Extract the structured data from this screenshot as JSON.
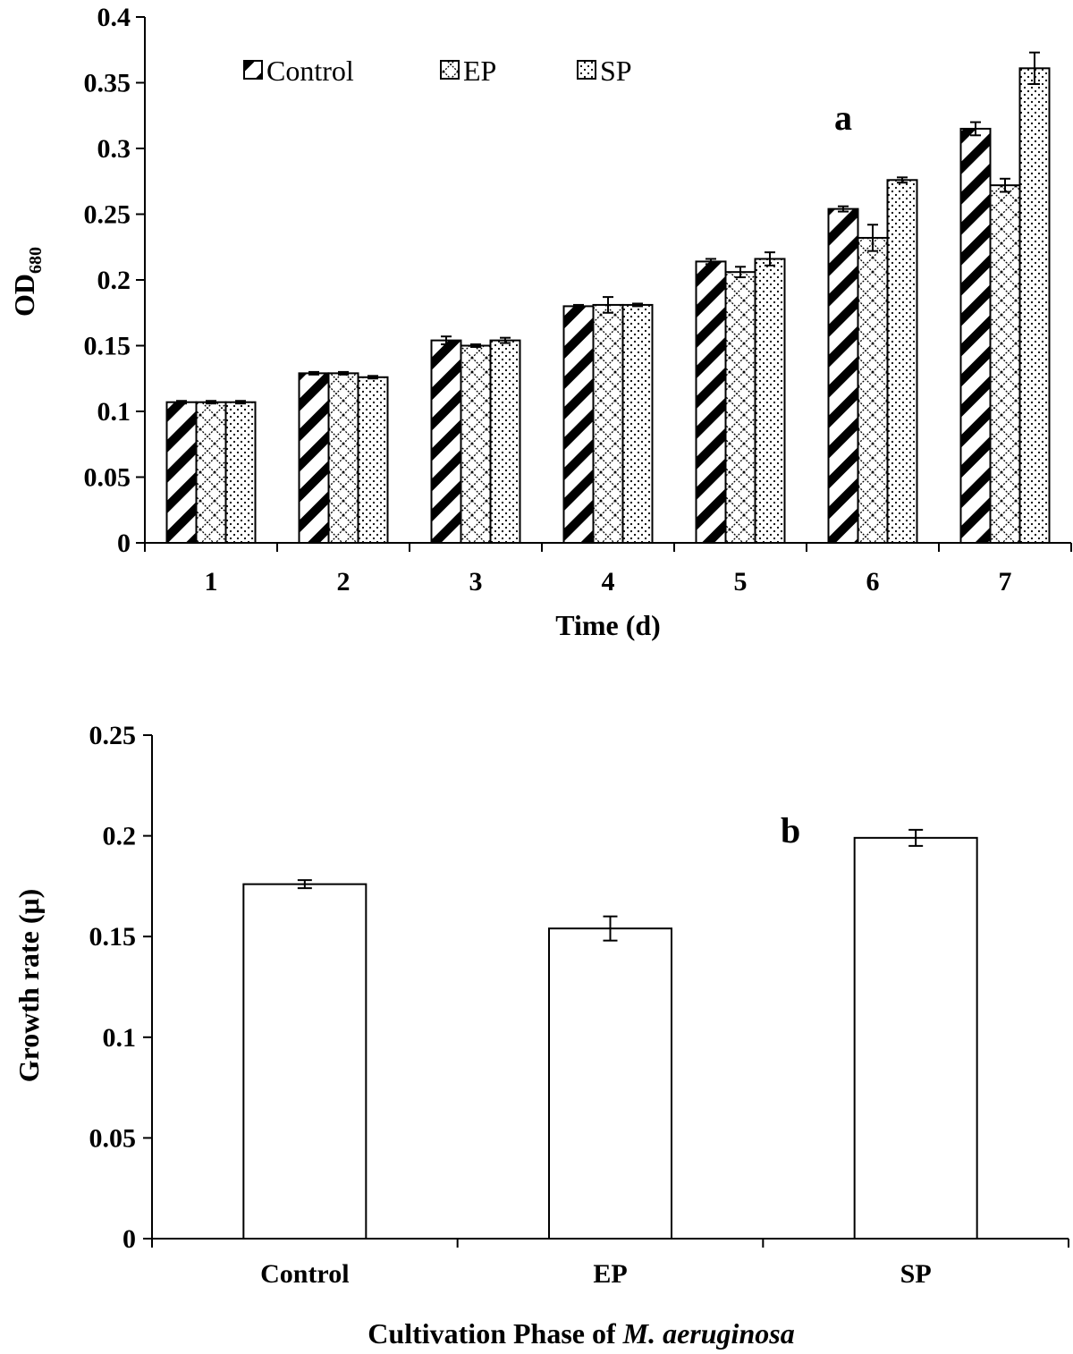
{
  "chart_data": [
    {
      "type": "bar",
      "panel_label": "a",
      "xlabel": "Time (d)",
      "ylabel_main": "OD",
      "ylabel_sub": "680",
      "categories": [
        "1",
        "2",
        "3",
        "4",
        "5",
        "6",
        "7"
      ],
      "ylim": [
        0,
        0.4
      ],
      "yticks": [
        "0",
        "0.05",
        "0.1",
        "0.15",
        "0.2",
        "0.25",
        "0.3",
        "0.35",
        "0.4"
      ],
      "grid": false,
      "legend_placement": "top",
      "series": [
        {
          "name": "Control",
          "pattern": "diagonal-stripes",
          "values": [
            0.107,
            0.129,
            0.154,
            0.18,
            0.214,
            0.254,
            0.315
          ],
          "errors": [
            0.001,
            0.001,
            0.003,
            0.001,
            0.002,
            0.002,
            0.005
          ]
        },
        {
          "name": "EP",
          "pattern": "checker",
          "values": [
            0.107,
            0.129,
            0.15,
            0.181,
            0.206,
            0.232,
            0.272
          ],
          "errors": [
            0.001,
            0.001,
            0.001,
            0.006,
            0.004,
            0.01,
            0.005
          ]
        },
        {
          "name": "SP",
          "pattern": "dots",
          "values": [
            0.107,
            0.126,
            0.154,
            0.181,
            0.216,
            0.276,
            0.361
          ],
          "errors": [
            0.001,
            0.001,
            0.002,
            0.001,
            0.005,
            0.002,
            0.012
          ]
        }
      ]
    },
    {
      "type": "bar",
      "panel_label": "b",
      "xlabel_prefix": "Cultivation Phase of ",
      "xlabel_italic": "M. aeruginosa",
      "ylabel": "Growth rate (μ)",
      "categories": [
        "Control",
        "EP",
        "SP"
      ],
      "ylim": [
        0,
        0.25
      ],
      "yticks": [
        "0",
        "0.05",
        "0.1",
        "0.15",
        "0.2",
        "0.25"
      ],
      "grid": false,
      "values": [
        0.176,
        0.154,
        0.199
      ],
      "errors": [
        0.002,
        0.006,
        0.004
      ]
    }
  ]
}
